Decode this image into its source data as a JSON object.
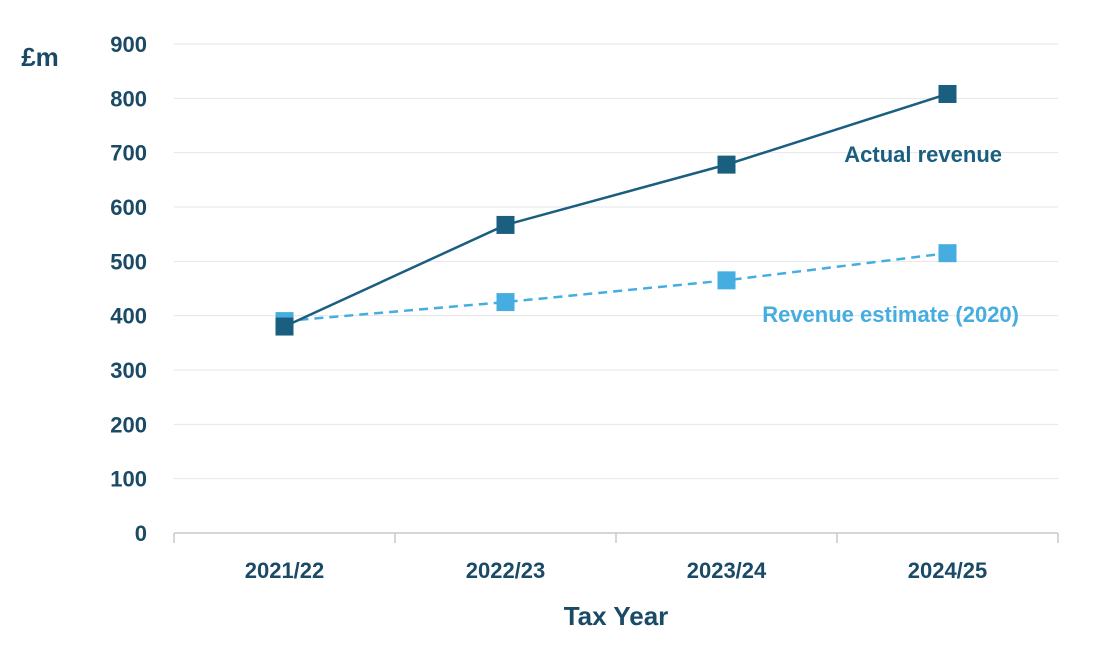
{
  "chart_data": {
    "type": "line",
    "categories": [
      "2021/22",
      "2022/23",
      "2023/24",
      "2024/25"
    ],
    "series": [
      {
        "name": "Actual revenue",
        "values": [
          380,
          567,
          678,
          808
        ],
        "color": "#1a5e80",
        "dashed": false,
        "marker": "square"
      },
      {
        "name": "Revenue estimate (2020)",
        "values": [
          390,
          425,
          465,
          515
        ],
        "color": "#45ade0",
        "dashed": true,
        "marker": "square"
      }
    ],
    "xlabel": "Tax Year",
    "ylabel": "£m",
    "ylim": [
      0,
      900
    ],
    "yticks": [
      0,
      100,
      200,
      300,
      400,
      500,
      600,
      700,
      800,
      900
    ],
    "grid": true,
    "axis_text_color": "#1a4a66"
  }
}
